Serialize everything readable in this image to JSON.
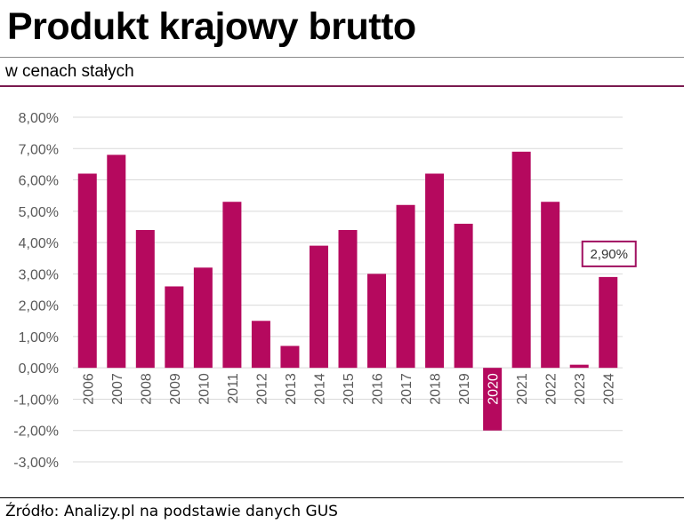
{
  "header": {
    "title": "Produkt krajowy brutto",
    "subtitle": "w cenach stałych"
  },
  "footer": {
    "source": "Źródło: Analizy.pl na podstawie danych GUS"
  },
  "colors": {
    "bar": "#b5095e",
    "callout_border": "#a01060",
    "grid": "#d9d9d9",
    "tick_text": "#595959"
  },
  "chart_data": {
    "type": "bar",
    "title": "Produkt krajowy brutto",
    "subtitle": "w cenach stałych",
    "categories": [
      "2006",
      "2007",
      "2008",
      "2009",
      "2010",
      "2011",
      "2012",
      "2013",
      "2014",
      "2015",
      "2016",
      "2017",
      "2018",
      "2019",
      "2020",
      "2021",
      "2022",
      "2023",
      "2024"
    ],
    "values": [
      6.2,
      6.8,
      4.4,
      2.6,
      3.2,
      5.3,
      1.5,
      0.7,
      3.9,
      4.4,
      3.0,
      5.2,
      6.2,
      4.6,
      -2.0,
      6.9,
      5.3,
      0.1,
      2.9
    ],
    "ylim": [
      -3,
      8
    ],
    "yticks": [
      8,
      7,
      6,
      5,
      4,
      3,
      2,
      1,
      0,
      -1,
      -2,
      -3
    ],
    "ytick_labels": [
      "8,00%",
      "7,00%",
      "6,00%",
      "5,00%",
      "4,00%",
      "3,00%",
      "2,00%",
      "1,00%",
      "0,00%",
      "-1,00%",
      "-2,00%",
      "-3,00%"
    ],
    "grid": true,
    "annotations": [
      {
        "category": "2024",
        "text": "2,90%"
      }
    ],
    "xlabel": "",
    "ylabel": ""
  }
}
